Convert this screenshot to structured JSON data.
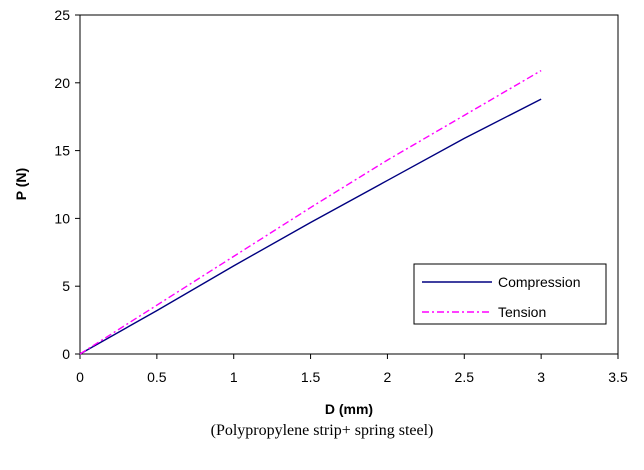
{
  "chart_data": {
    "type": "line",
    "xlabel": "D (mm)",
    "ylabel": "P (N)",
    "xlim": [
      0,
      3.5
    ],
    "ylim": [
      0,
      25
    ],
    "xticks": [
      "0",
      "0.5",
      "1",
      "1.5",
      "2",
      "2.5",
      "3",
      "3.5"
    ],
    "yticks": [
      "0",
      "5",
      "10",
      "15",
      "20",
      "25"
    ],
    "grid": false,
    "legend_position": "bottom-right",
    "series": [
      {
        "name": "Compression",
        "color": "#000080",
        "dash": "solid",
        "x": [
          0,
          0.5,
          1.0,
          1.5,
          2.0,
          2.5,
          3.0
        ],
        "y": [
          0,
          3.2,
          6.5,
          9.7,
          12.8,
          15.9,
          18.8
        ]
      },
      {
        "name": "Tension",
        "color": "#ff00ff",
        "dash": "dash-dot",
        "x": [
          0,
          0.5,
          1.0,
          1.5,
          2.0,
          2.5,
          3.0
        ],
        "y": [
          0,
          3.6,
          7.2,
          10.8,
          14.3,
          17.6,
          20.9
        ]
      }
    ]
  },
  "caption": "(Polypropylene strip+ spring steel)"
}
